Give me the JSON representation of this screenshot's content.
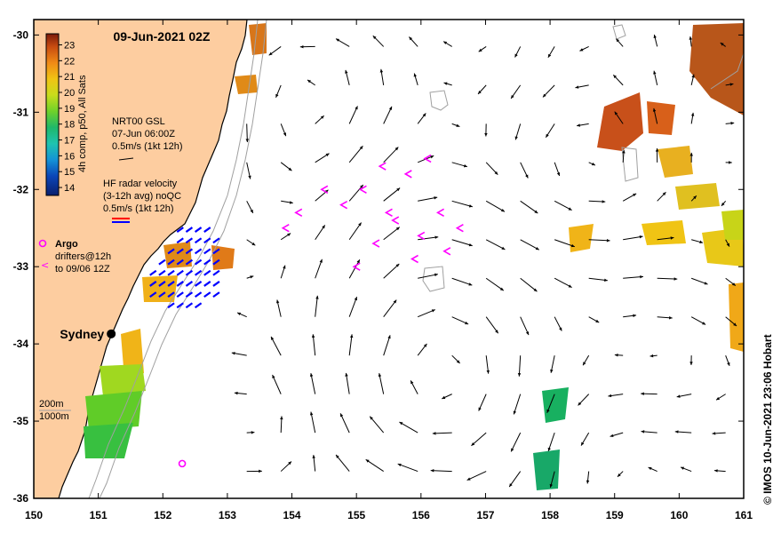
{
  "title": "09-Jun-2021 02Z",
  "credit": "© IMOS 10-Jun-2021 23:06 Hobart",
  "axes": {
    "x_ticks": [
      "150",
      "151",
      "152",
      "153",
      "154",
      "155",
      "156",
      "157",
      "158",
      "159",
      "160",
      "161"
    ],
    "y_ticks": [
      "-30",
      "-31",
      "-32",
      "-33",
      "-34",
      "-35",
      "-36"
    ],
    "xlim": [
      150,
      161
    ],
    "ylim": [
      -36,
      -29.8
    ]
  },
  "colorbar": {
    "label": "4h comp, p50, All Sats",
    "ticks": [
      "23",
      "22",
      "21",
      "20",
      "19",
      "18",
      "17",
      "16",
      "15",
      "14"
    ],
    "range": [
      13.5,
      23.7
    ]
  },
  "legend": {
    "gsl": {
      "line1": "NRT00 GSL",
      "line2": "07-Jun 06:00Z",
      "line3": "0.5m/s (1kt 12h)"
    },
    "hf_radar": {
      "line1": "HF radar velocity",
      "line2": "(3-12h avg) noQC",
      "line3": "0.5m/s (1kt 12h)"
    },
    "argo": {
      "label": "Argo",
      "color": "#ff00ff"
    },
    "drifters": {
      "line1": "drifters@12h",
      "line2": "to 09/06 12Z",
      "color": "#ff00ff"
    },
    "isobaths": {
      "line1": "200m",
      "line2": "1000m"
    }
  },
  "city": {
    "name": "Sydney",
    "lon": 151.2,
    "lat": -33.87
  },
  "argo_float": {
    "lon": 152.3,
    "lat": -35.55
  },
  "colors": {
    "land": "#fdcda0",
    "coast": "#000000",
    "isobath": "#a0a0a0",
    "velocity_arrow": "#000000",
    "hf_radar": "#0000ff",
    "drifter": "#ff00ff"
  }
}
